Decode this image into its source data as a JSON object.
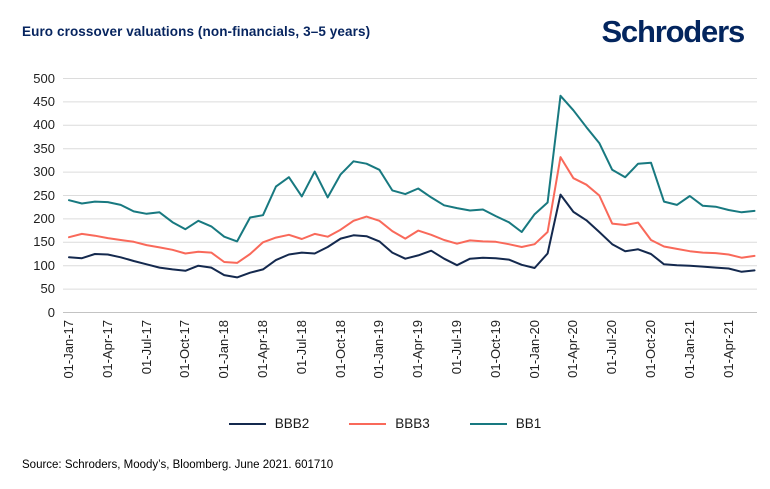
{
  "header": {
    "title": "Euro crossover valuations (non-financials, 3–5 years)",
    "logo": "Schroders"
  },
  "footer": {
    "source": "Source: Schroders, Moody’s, Bloomberg. June 2021. 601710"
  },
  "colors": {
    "brand_navy": "#03255e",
    "title_navy": "#06245f",
    "gridline": "#dcdcdc",
    "axis_zero_line": "#c3c3c3",
    "tick_text": "#1f1f1f"
  },
  "chart_data": {
    "type": "line",
    "title": "Euro crossover valuations (non-financials, 3–5 years)",
    "x_frequency": "monthly",
    "x_start": "01-Jan-17",
    "x_end": "01-Jun-21",
    "x_tick_labels": [
      "01-Jan-17",
      "01-Apr-17",
      "01-Jul-17",
      "01-Oct-17",
      "01-Jan-18",
      "01-Apr-18",
      "01-Jul-18",
      "01-Oct-18",
      "01-Jan-19",
      "01-Apr-19",
      "01-Jul-19",
      "01-Oct-19",
      "01-Jan-20",
      "01-Apr-20",
      "01-Jul-20",
      "01-Oct-20",
      "01-Jan-21",
      "01-Apr-21"
    ],
    "x_tick_indices": [
      0,
      3,
      6,
      9,
      12,
      15,
      18,
      21,
      24,
      27,
      30,
      33,
      36,
      39,
      42,
      45,
      48,
      51
    ],
    "ylim": [
      0,
      500
    ],
    "y_ticks": [
      0,
      50,
      100,
      150,
      200,
      250,
      300,
      350,
      400,
      450,
      500
    ],
    "grid": "horizontal",
    "legend_position": "bottom",
    "series": [
      {
        "name": "BBB2",
        "color": "#14294e",
        "values": [
          118,
          116,
          125,
          124,
          118,
          110,
          103,
          96,
          92,
          89,
          100,
          96,
          80,
          75,
          85,
          92,
          112,
          124,
          128,
          126,
          140,
          158,
          165,
          163,
          152,
          128,
          115,
          122,
          132,
          115,
          101,
          115,
          117,
          116,
          113,
          102,
          95,
          126,
          252,
          215,
          197,
          172,
          146,
          131,
          135,
          125,
          103,
          101,
          100,
          98,
          96,
          94,
          87,
          90
        ]
      },
      {
        "name": "BBB3",
        "color": "#f9695a",
        "values": [
          161,
          168,
          164,
          159,
          155,
          151,
          144,
          139,
          134,
          126,
          130,
          128,
          108,
          106,
          125,
          150,
          160,
          166,
          157,
          168,
          162,
          177,
          196,
          205,
          196,
          174,
          158,
          175,
          166,
          155,
          147,
          154,
          152,
          151,
          146,
          140,
          146,
          172,
          332,
          287,
          273,
          250,
          190,
          187,
          192,
          155,
          141,
          136,
          131,
          128,
          127,
          124,
          117,
          121
        ]
      },
      {
        "name": "BB1",
        "color": "#187980",
        "values": [
          240,
          233,
          237,
          236,
          230,
          216,
          211,
          214,
          193,
          178,
          196,
          184,
          162,
          152,
          203,
          208,
          269,
          289,
          248,
          301,
          246,
          295,
          323,
          318,
          305,
          261,
          253,
          265,
          246,
          229,
          223,
          218,
          220,
          206,
          193,
          172,
          210,
          235,
          463,
          432,
          396,
          362,
          305,
          289,
          318,
          320,
          237,
          230,
          249,
          228,
          226,
          219,
          214,
          217
        ]
      }
    ]
  }
}
